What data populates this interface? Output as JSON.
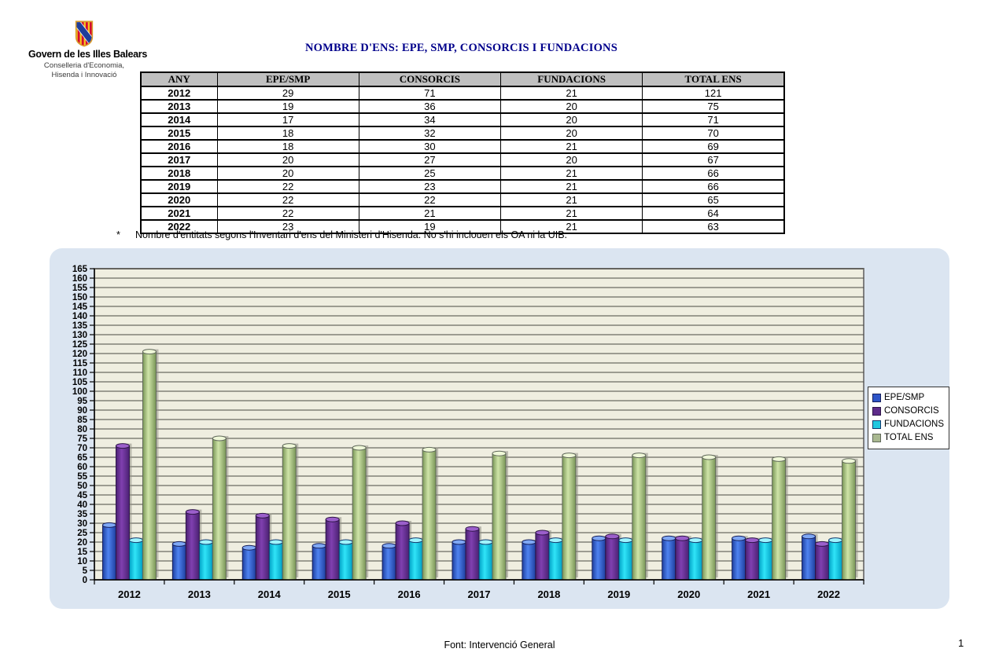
{
  "header": {
    "org_name": "Govern de les Illes Balears",
    "dept_line1": "Conselleria d'Economia,",
    "dept_line2": "Hisenda i Innovació",
    "title": "NOMBRE D'ENS: EPE, SMP, CONSORCIS I FUNDACIONS",
    "title_color": "#00008B"
  },
  "table": {
    "columns": [
      "ANY",
      "EPE/SMP",
      "CONSORCIS",
      "FUNDACIONS",
      "TOTAL ENS"
    ],
    "rows": [
      [
        "2012",
        "29",
        "71",
        "21",
        "121"
      ],
      [
        "2013",
        "19",
        "36",
        "20",
        "75"
      ],
      [
        "2014",
        "17",
        "34",
        "20",
        "71"
      ],
      [
        "2015",
        "18",
        "32",
        "20",
        "70"
      ],
      [
        "2016",
        "18",
        "30",
        "21",
        "69"
      ],
      [
        "2017",
        "20",
        "27",
        "20",
        "67"
      ],
      [
        "2018",
        "20",
        "25",
        "21",
        "66"
      ],
      [
        "2019",
        "22",
        "23",
        "21",
        "66"
      ],
      [
        "2020",
        "22",
        "22",
        "21",
        "65"
      ],
      [
        "2021",
        "22",
        "21",
        "21",
        "64"
      ],
      [
        "2022",
        "23",
        "19",
        "21",
        "63"
      ]
    ]
  },
  "footnote": {
    "marker": "*",
    "text": "Nombre d'entitats segons l'Inventari d'ens del Ministeri d'Hisenda. No s'hi inclouen els OA ni la UIB."
  },
  "chart_data": {
    "type": "bar",
    "title": "",
    "categories": [
      "2012",
      "2013",
      "2014",
      "2015",
      "2016",
      "2017",
      "2018",
      "2019",
      "2020",
      "2021",
      "2022"
    ],
    "series": [
      {
        "name": "EPE/SMP",
        "values": [
          29,
          19,
          17,
          18,
          18,
          20,
          20,
          22,
          22,
          22,
          23
        ],
        "color_dark": "#1E3FA0",
        "color_light": "#4F83F0",
        "cap": "#7FA8F5",
        "stroke": "#151F5C",
        "legend_fill": "#2E55C8"
      },
      {
        "name": "CONSORCIS",
        "values": [
          71,
          36,
          34,
          32,
          30,
          27,
          25,
          23,
          22,
          21,
          19
        ],
        "color_dark": "#4B2173",
        "color_light": "#8040B0",
        "cap": "#9B5FCB",
        "stroke": "#2E1547",
        "legend_fill": "#5E2B8A"
      },
      {
        "name": "FUNDACIONS",
        "values": [
          21,
          20,
          20,
          20,
          21,
          20,
          21,
          21,
          21,
          21,
          21
        ],
        "color_dark": "#00A0C4",
        "color_light": "#30E4F8",
        "cap": "#9FF4FF",
        "stroke": "#123A6E",
        "legend_fill": "#20C8E0"
      },
      {
        "name": "TOTAL ENS",
        "values": [
          121,
          75,
          71,
          70,
          69,
          67,
          66,
          66,
          65,
          64,
          63
        ],
        "color_dark": "#789556",
        "color_light": "#CFE4A8",
        "cap": "#EFF8D8",
        "stroke": "#60685A",
        "legend_fill": "#A9B890"
      }
    ],
    "xlabel": "",
    "ylabel": "",
    "ylim": [
      0,
      165
    ],
    "ytick_step": 5,
    "grid": true,
    "legend_position": "right",
    "plot_bg": "#EFEEE0",
    "grid_color": "#4A4A42",
    "panel_bg": "#DBE5F1"
  },
  "footer": {
    "source": "Font: Intervenció General",
    "page": "1"
  }
}
